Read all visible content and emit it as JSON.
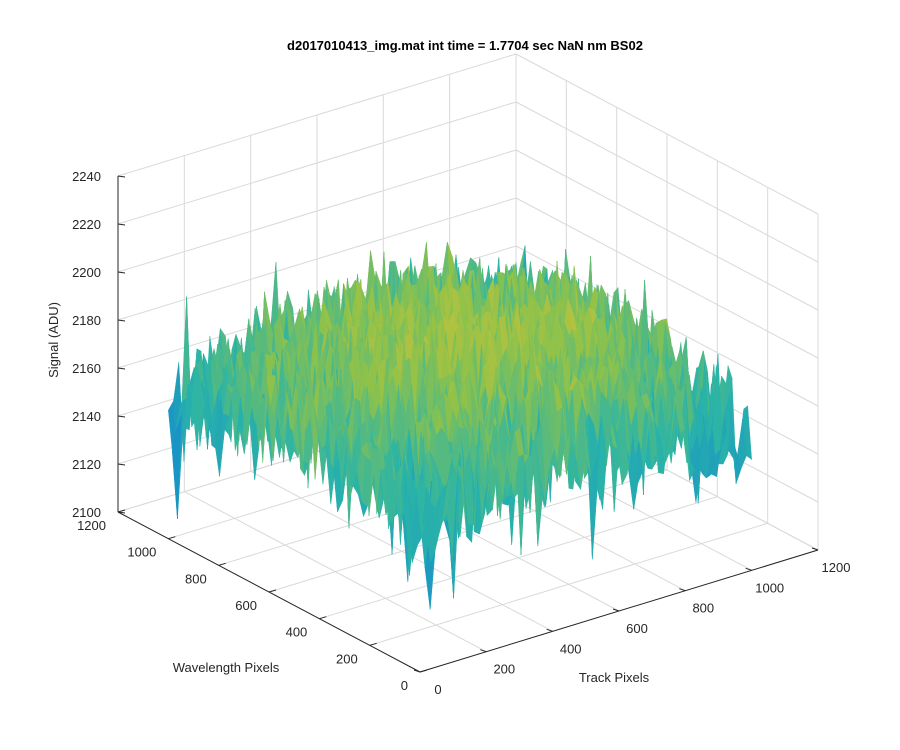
{
  "chart_data": {
    "type": "surface",
    "title": "d2017010413_img.mat int time = 1.7704 sec  NaN nm BS02",
    "xlabel": "Track Pixels",
    "ylabel": "Wavelength Pixels",
    "zlabel": "Signal (ADU)",
    "xlim": [
      0,
      1200
    ],
    "ylim": [
      0,
      1200
    ],
    "zlim": [
      2100,
      2240
    ],
    "x_ticks": [
      "0",
      "200",
      "400",
      "600",
      "800",
      "1000",
      "1200"
    ],
    "y_ticks": [
      "0",
      "200",
      "400",
      "600",
      "800",
      "1000",
      "1200"
    ],
    "z_ticks": [
      "2100",
      "2120",
      "2140",
      "2160",
      "2180",
      "2200",
      "2220",
      "2240"
    ],
    "grid": true,
    "colormap": "parula",
    "surface_stats": {
      "approx_mean_center": 2185,
      "approx_mean_edges": 2155,
      "noise_amplitude": 20,
      "min": 2100,
      "max": 2225
    },
    "colors": {
      "low": "#0f7fd8",
      "mid": "#2ab4a8",
      "midhigh": "#8fc24a",
      "high": "#f2c12e"
    }
  }
}
